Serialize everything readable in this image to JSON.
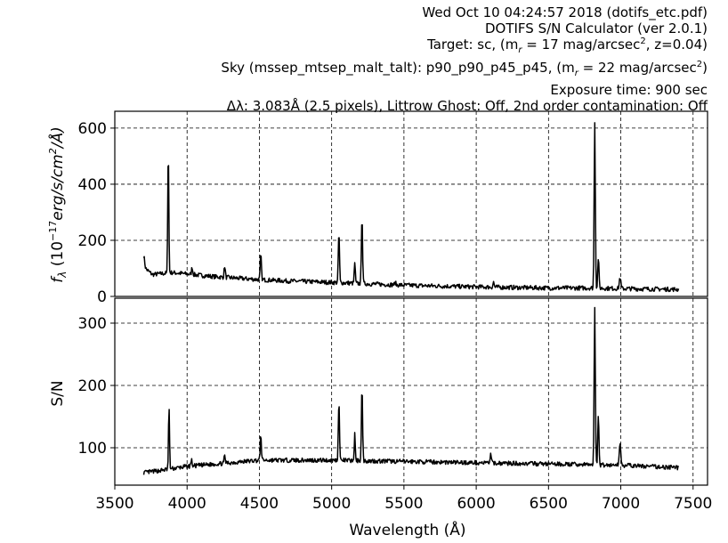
{
  "header": {
    "line1": "Wed Oct 10 04:24:57 2018 (dotifs_etc.pdf)",
    "line2": "DOTIFS S/N Calculator (ver 2.0.1)",
    "line3_pre": "Target: sc, (m",
    "line3_sub": "r",
    "line3_mid": " = 17 mag/arcsec",
    "line3_sup": "2",
    "line3_post": ", z=0.04)",
    "line4_pre": "Sky (mssep_mtsep_malt_talt): p90_p90_p45_p45, (m",
    "line4_sub": "r",
    "line4_mid": " = 22 mag/arcsec",
    "line4_sup": "2",
    "line4_post": ")",
    "line5": "Exposure time: 900 sec",
    "line6": "Δλ: 3.083Å (2.5 pixels), Littrow Ghost: Off, 2nd order contamination: Off"
  },
  "chart_data": [
    {
      "type": "line",
      "panel": "top",
      "ylabel": "f_λ (10^-17 erg/s/cm^2/Å)",
      "ylabel_main": "f",
      "ylabel_sub": "λ",
      "ylabel_a": " (10",
      "ylabel_sup": "−17",
      "ylabel_b": "erg/s/cm",
      "ylabel_sup2": "2",
      "ylabel_c": "/Å)",
      "xlim": [
        3500,
        7600
      ],
      "ylim": [
        0,
        660
      ],
      "yticks": [
        0,
        200,
        400,
        600
      ],
      "ytick_labels": [
        "0",
        "200",
        "400",
        "600"
      ],
      "grid": true,
      "continuum": [
        [
          3700,
          105
        ],
        [
          3760,
          78
        ],
        [
          3900,
          85
        ],
        [
          4200,
          70
        ],
        [
          4500,
          60
        ],
        [
          4700,
          55
        ],
        [
          5000,
          50
        ],
        [
          5500,
          40
        ],
        [
          6000,
          34
        ],
        [
          6500,
          30
        ],
        [
          6800,
          30
        ],
        [
          7000,
          28
        ],
        [
          7400,
          25
        ]
      ],
      "noise_amplitude": 8,
      "lines": [
        {
          "x": 3700,
          "height": 40,
          "width": 6
        },
        {
          "x": 3870,
          "height": 455,
          "width": 3.5
        },
        {
          "x": 4035,
          "height": 25,
          "width": 4
        },
        {
          "x": 4260,
          "height": 40,
          "width": 4
        },
        {
          "x": 4510,
          "height": 90,
          "width": 4
        },
        {
          "x": 5050,
          "height": 180,
          "width": 4
        },
        {
          "x": 5160,
          "height": 75,
          "width": 3.5
        },
        {
          "x": 5210,
          "height": 245,
          "width": 4
        },
        {
          "x": 5440,
          "height": 8,
          "width": 4
        },
        {
          "x": 6120,
          "height": 18,
          "width": 4
        },
        {
          "x": 6820,
          "height": 595,
          "width": 4
        },
        {
          "x": 6845,
          "height": 110,
          "width": 4
        },
        {
          "x": 6995,
          "height": 40,
          "width": 5
        }
      ]
    },
    {
      "type": "line",
      "panel": "bottom",
      "ylabel": "S/N",
      "xlabel": "Wavelength (Å)",
      "xlim": [
        3500,
        7600
      ],
      "ylim": [
        40,
        340
      ],
      "yticks": [
        100,
        200,
        300
      ],
      "ytick_labels": [
        "100",
        "200",
        "300"
      ],
      "xticks": [
        3500,
        4000,
        4500,
        5000,
        5500,
        6000,
        6500,
        7000,
        7500
      ],
      "xtick_labels": [
        "3500",
        "4000",
        "4500",
        "5000",
        "5500",
        "6000",
        "6500",
        "7000",
        "7500"
      ],
      "grid": true,
      "continuum": [
        [
          3700,
          60
        ],
        [
          3800,
          63
        ],
        [
          4000,
          70
        ],
        [
          4500,
          80
        ],
        [
          5000,
          80
        ],
        [
          5500,
          78
        ],
        [
          6000,
          76
        ],
        [
          6500,
          74
        ],
        [
          7000,
          72
        ],
        [
          7400,
          68
        ]
      ],
      "noise_amplitude": 3.5,
      "lines": [
        {
          "x": 3875,
          "height": 100,
          "width": 3.5
        },
        {
          "x": 4030,
          "height": 10,
          "width": 4
        },
        {
          "x": 4260,
          "height": 12,
          "width": 4
        },
        {
          "x": 4510,
          "height": 40,
          "width": 4
        },
        {
          "x": 5050,
          "height": 95,
          "width": 4
        },
        {
          "x": 5160,
          "height": 42,
          "width": 3.5
        },
        {
          "x": 5210,
          "height": 118,
          "width": 4
        },
        {
          "x": 6100,
          "height": 15,
          "width": 4
        },
        {
          "x": 6820,
          "height": 255,
          "width": 4
        },
        {
          "x": 6845,
          "height": 80,
          "width": 4
        },
        {
          "x": 6995,
          "height": 38,
          "width": 5
        }
      ]
    }
  ]
}
